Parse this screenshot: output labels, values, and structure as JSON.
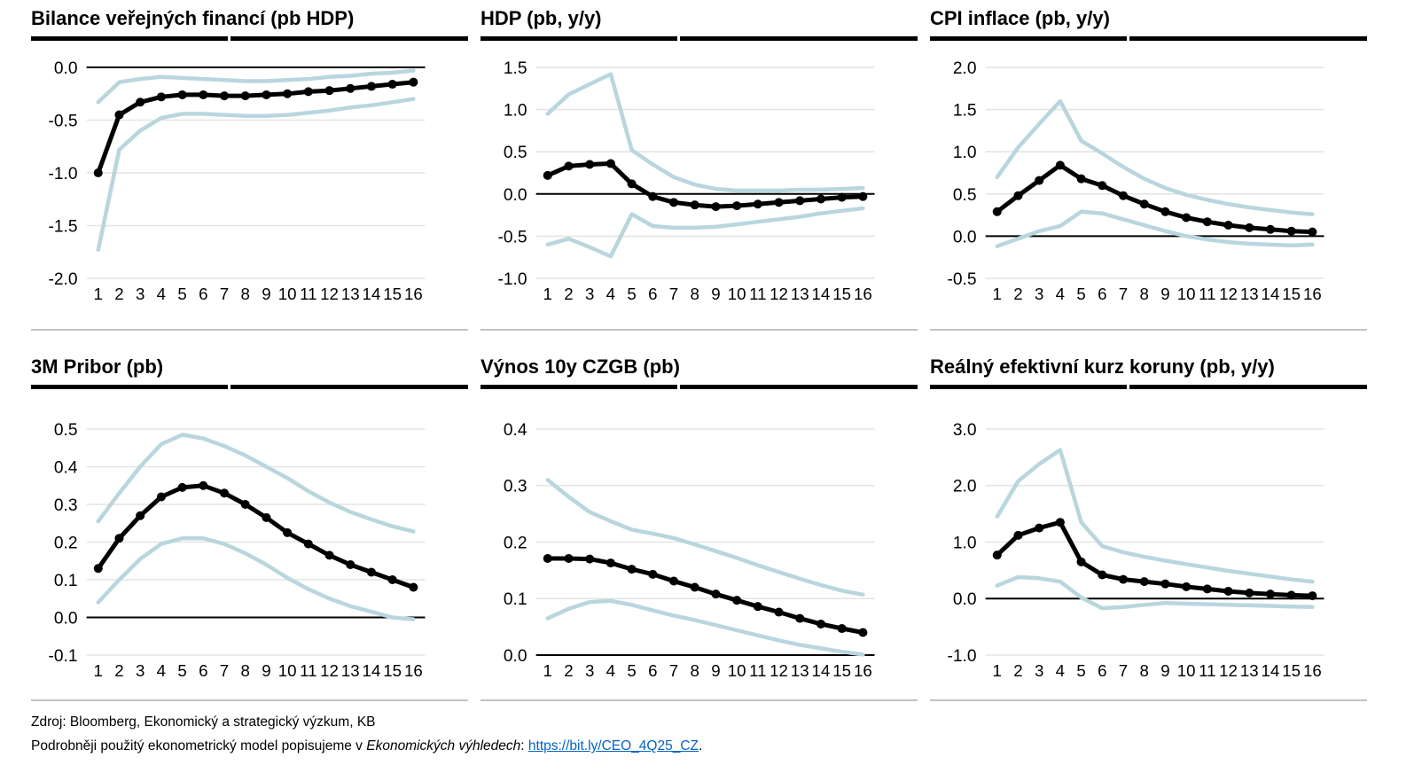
{
  "colors": {
    "band_line": "#b9d6de",
    "main_line": "#000000",
    "grid_line": "#e4e4e4",
    "zero_line": "#000000",
    "panel_border": "#c2c2c2",
    "title_rule": "#000000",
    "link": "#0563c1"
  },
  "chart_data": [
    {
      "type": "line",
      "title": "Bilance veřejných financí (pb HDP)",
      "x": [
        1,
        2,
        3,
        4,
        5,
        6,
        7,
        8,
        9,
        10,
        11,
        12,
        13,
        14,
        15,
        16
      ],
      "ylim": [
        -2.0,
        0.0
      ],
      "ytick_values": [
        0.0,
        -0.5,
        -1.0,
        -1.5,
        -2.0
      ],
      "ytick_labels": [
        "0.0",
        "-0.5",
        "-1.0",
        "-1.5",
        "-2.0"
      ],
      "zero_line": true,
      "grid": true,
      "legend": "none",
      "series": [
        {
          "role": "upper_band",
          "values": [
            -0.33,
            -0.14,
            -0.11,
            -0.09,
            -0.1,
            -0.11,
            -0.12,
            -0.13,
            -0.13,
            -0.12,
            -0.11,
            -0.09,
            -0.08,
            -0.06,
            -0.05,
            -0.03
          ]
        },
        {
          "role": "mean",
          "values": [
            -1.0,
            -0.45,
            -0.33,
            -0.28,
            -0.26,
            -0.26,
            -0.27,
            -0.27,
            -0.26,
            -0.25,
            -0.23,
            -0.22,
            -0.2,
            -0.18,
            -0.16,
            -0.14
          ]
        },
        {
          "role": "lower_band",
          "values": [
            -1.73,
            -0.78,
            -0.6,
            -0.48,
            -0.44,
            -0.44,
            -0.45,
            -0.46,
            -0.46,
            -0.45,
            -0.43,
            -0.41,
            -0.38,
            -0.36,
            -0.33,
            -0.3
          ]
        }
      ]
    },
    {
      "type": "line",
      "title": "HDP (pb, y/y)",
      "x": [
        1,
        2,
        3,
        4,
        5,
        6,
        7,
        8,
        9,
        10,
        11,
        12,
        13,
        14,
        15,
        16
      ],
      "ylim": [
        -1.0,
        1.5
      ],
      "ytick_values": [
        1.5,
        1.0,
        0.5,
        0.0,
        -0.5,
        -1.0
      ],
      "ytick_labels": [
        "1.5",
        "1.0",
        "0.5",
        "0.0",
        "-0.5",
        "-1.0"
      ],
      "zero_line": true,
      "grid": true,
      "legend": "none",
      "series": [
        {
          "role": "upper_band",
          "values": [
            0.95,
            1.18,
            1.3,
            1.42,
            0.52,
            0.35,
            0.2,
            0.11,
            0.06,
            0.04,
            0.04,
            0.04,
            0.05,
            0.05,
            0.06,
            0.07
          ]
        },
        {
          "role": "mean",
          "values": [
            0.22,
            0.33,
            0.35,
            0.36,
            0.12,
            -0.03,
            -0.1,
            -0.13,
            -0.15,
            -0.14,
            -0.12,
            -0.1,
            -0.08,
            -0.06,
            -0.04,
            -0.03
          ]
        },
        {
          "role": "lower_band",
          "values": [
            -0.6,
            -0.53,
            -0.63,
            -0.74,
            -0.24,
            -0.38,
            -0.4,
            -0.4,
            -0.39,
            -0.36,
            -0.33,
            -0.3,
            -0.27,
            -0.23,
            -0.2,
            -0.17
          ]
        }
      ]
    },
    {
      "type": "line",
      "title": "CPI inflace (pb, y/y)",
      "x": [
        1,
        2,
        3,
        4,
        5,
        6,
        7,
        8,
        9,
        10,
        11,
        12,
        13,
        14,
        15,
        16
      ],
      "ylim": [
        -0.5,
        2.0
      ],
      "ytick_values": [
        2.0,
        1.5,
        1.0,
        0.5,
        0.0,
        -0.5
      ],
      "ytick_labels": [
        "2.0",
        "1.5",
        "1.0",
        "0.5",
        "0.0",
        "-0.5"
      ],
      "zero_line": true,
      "grid": true,
      "legend": "none",
      "series": [
        {
          "role": "upper_band",
          "values": [
            0.7,
            1.05,
            1.33,
            1.6,
            1.13,
            0.98,
            0.82,
            0.68,
            0.57,
            0.49,
            0.43,
            0.38,
            0.34,
            0.31,
            0.28,
            0.26
          ]
        },
        {
          "role": "mean",
          "values": [
            0.29,
            0.48,
            0.66,
            0.84,
            0.68,
            0.6,
            0.48,
            0.38,
            0.29,
            0.22,
            0.17,
            0.13,
            0.1,
            0.08,
            0.06,
            0.05
          ]
        },
        {
          "role": "lower_band",
          "values": [
            -0.12,
            -0.03,
            0.06,
            0.12,
            0.29,
            0.27,
            0.2,
            0.13,
            0.06,
            0.0,
            -0.04,
            -0.07,
            -0.09,
            -0.1,
            -0.11,
            -0.1
          ]
        }
      ]
    },
    {
      "type": "line",
      "title": "3M Pribor (pb)",
      "x": [
        1,
        2,
        3,
        4,
        5,
        6,
        7,
        8,
        9,
        10,
        11,
        12,
        13,
        14,
        15,
        16
      ],
      "ylim": [
        -0.1,
        0.5
      ],
      "ytick_values": [
        0.5,
        0.4,
        0.3,
        0.2,
        0.1,
        0.0,
        -0.1
      ],
      "ytick_labels": [
        "0.5",
        "0.4",
        "0.3",
        "0.2",
        "0.1",
        "0.0",
        "-0.1"
      ],
      "zero_line": true,
      "grid": true,
      "legend": "none",
      "series": [
        {
          "role": "upper_band",
          "values": [
            0.255,
            0.33,
            0.4,
            0.46,
            0.485,
            0.475,
            0.455,
            0.43,
            0.4,
            0.37,
            0.335,
            0.305,
            0.28,
            0.26,
            0.242,
            0.228
          ]
        },
        {
          "role": "mean",
          "values": [
            0.13,
            0.21,
            0.27,
            0.32,
            0.345,
            0.35,
            0.33,
            0.3,
            0.265,
            0.225,
            0.195,
            0.165,
            0.14,
            0.12,
            0.1,
            0.08
          ]
        },
        {
          "role": "lower_band",
          "values": [
            0.04,
            0.1,
            0.155,
            0.195,
            0.21,
            0.21,
            0.195,
            0.17,
            0.14,
            0.105,
            0.075,
            0.05,
            0.03,
            0.015,
            0.0,
            -0.005
          ]
        }
      ]
    },
    {
      "type": "line",
      "title": "Výnos 10y CZGB (pb)",
      "x": [
        1,
        2,
        3,
        4,
        5,
        6,
        7,
        8,
        9,
        10,
        11,
        12,
        13,
        14,
        15,
        16
      ],
      "ylim": [
        0.0,
        0.4
      ],
      "ytick_values": [
        0.4,
        0.3,
        0.2,
        0.1,
        0.0
      ],
      "ytick_labels": [
        "0.4",
        "0.3",
        "0.2",
        "0.1",
        "0.0"
      ],
      "zero_line": true,
      "grid": true,
      "legend": "none",
      "series": [
        {
          "role": "upper_band",
          "values": [
            0.31,
            0.28,
            0.253,
            0.237,
            0.222,
            0.215,
            0.207,
            0.196,
            0.184,
            0.172,
            0.159,
            0.147,
            0.135,
            0.124,
            0.114,
            0.107
          ]
        },
        {
          "role": "mean",
          "values": [
            0.171,
            0.171,
            0.17,
            0.163,
            0.152,
            0.143,
            0.131,
            0.12,
            0.108,
            0.097,
            0.086,
            0.076,
            0.065,
            0.055,
            0.047,
            0.04
          ]
        },
        {
          "role": "lower_band",
          "values": [
            0.065,
            0.082,
            0.094,
            0.096,
            0.089,
            0.079,
            0.07,
            0.062,
            0.053,
            0.044,
            0.035,
            0.026,
            0.018,
            0.012,
            0.006,
            0.001
          ]
        }
      ]
    },
    {
      "type": "line",
      "title": "Reálný efektivní kurz koruny (pb, y/y)",
      "x": [
        1,
        2,
        3,
        4,
        5,
        6,
        7,
        8,
        9,
        10,
        11,
        12,
        13,
        14,
        15,
        16
      ],
      "ylim": [
        -1.0,
        3.0
      ],
      "ytick_values": [
        3.0,
        2.0,
        1.0,
        0.0,
        -1.0
      ],
      "ytick_labels": [
        "3.0",
        "2.0",
        "1.0",
        "0.0",
        "-1.0"
      ],
      "zero_line": true,
      "grid": true,
      "legend": "none",
      "series": [
        {
          "role": "upper_band",
          "values": [
            1.45,
            2.08,
            2.38,
            2.63,
            1.35,
            0.93,
            0.82,
            0.74,
            0.67,
            0.61,
            0.55,
            0.49,
            0.44,
            0.39,
            0.34,
            0.3
          ]
        },
        {
          "role": "mean",
          "values": [
            0.77,
            1.12,
            1.25,
            1.35,
            0.65,
            0.42,
            0.34,
            0.3,
            0.26,
            0.21,
            0.17,
            0.13,
            0.1,
            0.08,
            0.06,
            0.05
          ]
        },
        {
          "role": "lower_band",
          "values": [
            0.23,
            0.38,
            0.36,
            0.3,
            0.02,
            -0.17,
            -0.15,
            -0.11,
            -0.08,
            -0.09,
            -0.1,
            -0.11,
            -0.12,
            -0.13,
            -0.14,
            -0.15
          ]
        }
      ]
    }
  ],
  "footer": {
    "source": "Zdroj: Bloomberg, Ekonomický a strategický výzkum, KB",
    "note_prefix": "Podrobněji použitý ekonometrický model popisujeme v ",
    "note_italic": "Ekonomických výhledech",
    "note_separator": ": ",
    "link_text": "https://bit.ly/CEO_4Q25_CZ",
    "note_suffix": "."
  }
}
